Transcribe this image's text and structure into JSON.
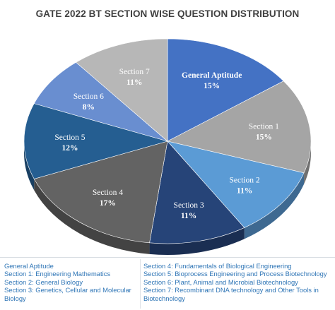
{
  "chart_data": {
    "type": "pie",
    "title": "GATE 2022 BT SECTION WISE QUESTION DISTRIBUTION",
    "slices": [
      {
        "label": "General Aptitude",
        "value_text": "15%",
        "value": 15,
        "color": "#4472c4"
      },
      {
        "label": "Section 1",
        "value_text": "15%",
        "value": 15,
        "color": "#a5a5a5"
      },
      {
        "label": "Section 2",
        "value_text": "11%",
        "value": 11,
        "color": "#5b9bd5"
      },
      {
        "label": "Section 3",
        "value_text": "11%",
        "value": 11,
        "color": "#264478"
      },
      {
        "label": "Section 4",
        "value_text": "17%",
        "value": 17,
        "color": "#636363"
      },
      {
        "label": "Section 5",
        "value_text": "12%",
        "value": 12,
        "color": "#255e91"
      },
      {
        "label": "Section 6",
        "value_text": "8%",
        "value": 8,
        "color": "#698ed0"
      },
      {
        "label": "Section 7",
        "value_text": "11%",
        "value": 11,
        "color": "#b7b7b7"
      }
    ]
  },
  "legend": {
    "left": [
      "General Aptitude",
      "Section 1: Engineering Mathematics",
      "Section 2: General Biology",
      "Section 3: Genetics, Cellular and Molecular Biology"
    ],
    "right": [
      "Section 4: Fundamentals of Biological Engineering",
      "Section 5: Bioprocess Engineering and Process Biotechnology",
      "Section 6: Plant, Animal and Microbial Biotechnology",
      "Section 7: Recombinant DNA technology and Other Tools in Biotechnology"
    ]
  }
}
